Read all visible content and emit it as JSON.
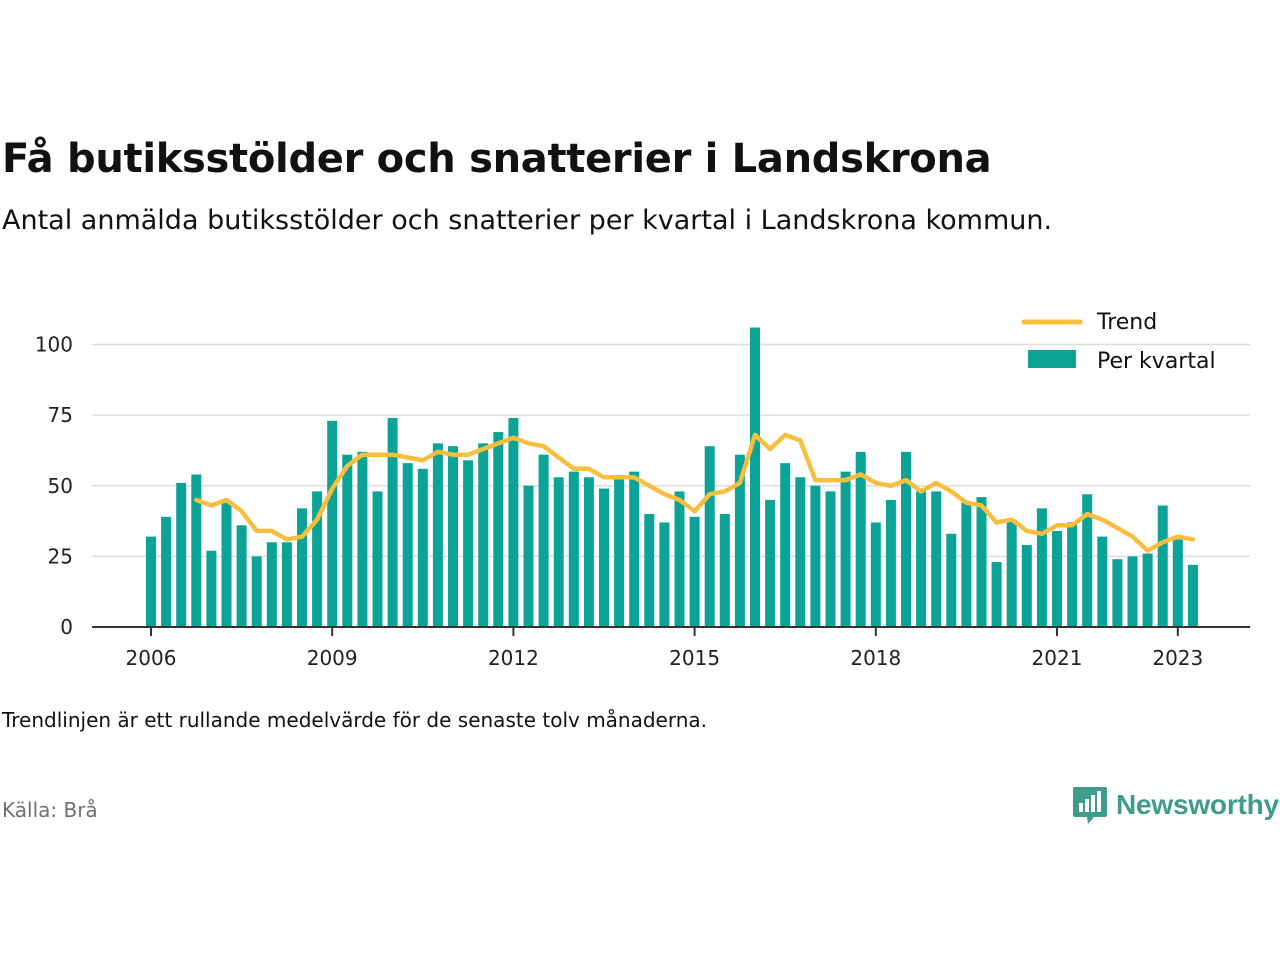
{
  "header": {
    "title": "Få butiksstölder och snatterier i Landskrona",
    "subtitle": "Antal anmälda butiksstölder och snatterier per kvartal i Landskrona kommun."
  },
  "footer": {
    "note": "Trendlinjen är ett rullande medelvärde för de senaste tolv månaderna.",
    "source": "Källa: Brå",
    "brand": "Newsworthy"
  },
  "colors": {
    "bars": "#0aa396",
    "trend": "#f9be3e",
    "grid": "#dddddd",
    "axis": "#333333",
    "brand": "#3f9b8e"
  },
  "chart_data": {
    "type": "bar",
    "x_label_format": "year",
    "xlabel": "",
    "ylabel": "",
    "ylim": [
      0,
      110
    ],
    "yticks": [
      0,
      25,
      50,
      75,
      100
    ],
    "xticks": [
      "2006",
      "2009",
      "2012",
      "2015",
      "2018",
      "2021",
      "2023"
    ],
    "grid": true,
    "legend_position": "top-right",
    "categories": [
      "2006 Q1",
      "2006 Q2",
      "2006 Q3",
      "2006 Q4",
      "2007 Q1",
      "2007 Q2",
      "2007 Q3",
      "2007 Q4",
      "2008 Q1",
      "2008 Q2",
      "2008 Q3",
      "2008 Q4",
      "2009 Q1",
      "2009 Q2",
      "2009 Q3",
      "2009 Q4",
      "2010 Q1",
      "2010 Q2",
      "2010 Q3",
      "2010 Q4",
      "2011 Q1",
      "2011 Q2",
      "2011 Q3",
      "2011 Q4",
      "2012 Q1",
      "2012 Q2",
      "2012 Q3",
      "2012 Q4",
      "2013 Q1",
      "2013 Q2",
      "2013 Q3",
      "2013 Q4",
      "2014 Q1",
      "2014 Q2",
      "2014 Q3",
      "2014 Q4",
      "2015 Q1",
      "2015 Q2",
      "2015 Q3",
      "2015 Q4",
      "2016 Q1",
      "2016 Q2",
      "2016 Q3",
      "2016 Q4",
      "2017 Q1",
      "2017 Q2",
      "2017 Q3",
      "2017 Q4",
      "2018 Q1",
      "2018 Q2",
      "2018 Q3",
      "2018 Q4",
      "2019 Q1",
      "2019 Q2",
      "2019 Q3",
      "2019 Q4",
      "2020 Q1",
      "2020 Q2",
      "2020 Q3",
      "2020 Q4",
      "2021 Q1",
      "2021 Q2",
      "2021 Q3",
      "2021 Q4",
      "2022 Q1",
      "2022 Q2",
      "2022 Q3",
      "2022 Q4",
      "2023 Q1",
      "2023 Q2"
    ],
    "series": [
      {
        "name": "Per kvartal",
        "type": "bar",
        "values": [
          32,
          39,
          51,
          54,
          27,
          44,
          36,
          25,
          30,
          30,
          42,
          48,
          73,
          61,
          62,
          48,
          74,
          58,
          56,
          65,
          64,
          59,
          65,
          69,
          74,
          50,
          61,
          53,
          55,
          53,
          49,
          53,
          55,
          40,
          37,
          48,
          39,
          64,
          40,
          61,
          106,
          45,
          58,
          53,
          50,
          48,
          55,
          62,
          37,
          45,
          62,
          48,
          48,
          33,
          44,
          46,
          23,
          38,
          29,
          42,
          34,
          37,
          47,
          32,
          24,
          25,
          26,
          43,
          31,
          22
        ]
      },
      {
        "name": "Trend",
        "type": "line",
        "values": [
          null,
          null,
          null,
          45,
          43,
          45,
          41,
          34,
          34,
          31,
          32,
          38,
          49,
          57,
          61,
          61,
          61,
          60,
          59,
          62,
          61,
          61,
          63,
          65,
          67,
          65,
          64,
          60,
          56,
          56,
          53,
          53,
          53,
          50,
          47,
          45,
          41,
          47,
          48,
          51,
          68,
          63,
          68,
          66,
          52,
          52,
          52,
          54,
          51,
          50,
          52,
          48,
          51,
          48,
          44,
          43,
          37,
          38,
          34,
          33,
          36,
          36,
          40,
          38,
          35,
          32,
          27,
          30,
          32,
          31
        ]
      }
    ]
  }
}
